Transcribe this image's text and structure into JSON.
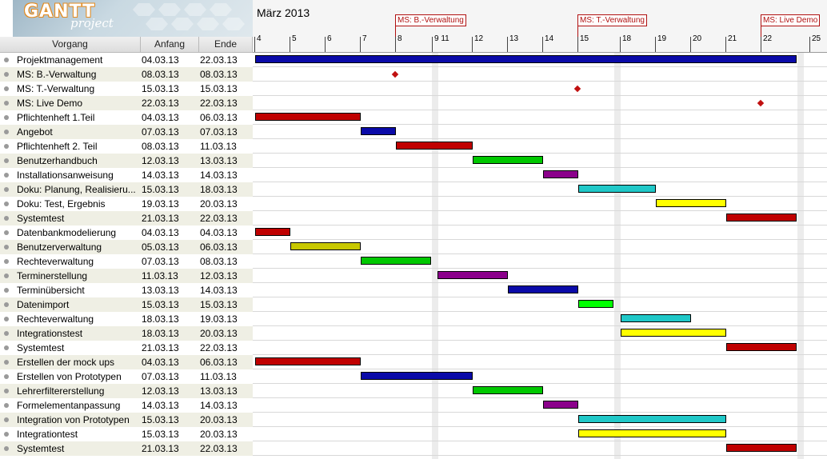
{
  "app": {
    "logo_main": "GANTT",
    "logo_sub": "project"
  },
  "columns": {
    "task": "Vorgang",
    "start": "Anfang",
    "end": "Ende"
  },
  "chart": {
    "month": "März 2013",
    "day_ticks": [
      "4",
      "5",
      "6",
      "7",
      "8",
      "9 11",
      "12",
      "13",
      "14",
      "15",
      "18",
      "19",
      "20",
      "21",
      "22",
      "25"
    ],
    "milestones": [
      {
        "label": "MS: B.-Verwaltung",
        "date": "08.03.13"
      },
      {
        "label": "MS: T.-Verwaltung",
        "date": "15.03.13"
      },
      {
        "label": "MS: Live Demo",
        "date": "22.03.13"
      }
    ],
    "colors": {
      "blue": "#0a0aa8",
      "red": "#c00000",
      "green": "#00c800",
      "purple": "#8b008b",
      "cyan": "#20c8c8",
      "yellow": "#ffff00",
      "olive": "#c8c800",
      "lime": "#00ff00",
      "milestone": "#c01010"
    }
  },
  "tasks": [
    {
      "name": "Projektmanagement",
      "start": "04.03.13",
      "end": "22.03.13",
      "color": "blue"
    },
    {
      "name": "MS: B.-Verwaltung",
      "start": "08.03.13",
      "end": "08.03.13",
      "milestone": true
    },
    {
      "name": "MS: T.-Verwaltung",
      "start": "15.03.13",
      "end": "15.03.13",
      "milestone": true
    },
    {
      "name": "MS: Live Demo",
      "start": "22.03.13",
      "end": "22.03.13",
      "milestone": true
    },
    {
      "name": "Pflichtenheft 1.Teil",
      "start": "04.03.13",
      "end": "06.03.13",
      "color": "red"
    },
    {
      "name": "Angebot",
      "start": "07.03.13",
      "end": "07.03.13",
      "color": "blue"
    },
    {
      "name": "Pflichtenheft 2. Teil",
      "start": "08.03.13",
      "end": "11.03.13",
      "color": "red"
    },
    {
      "name": "Benutzerhandbuch",
      "start": "12.03.13",
      "end": "13.03.13",
      "color": "green"
    },
    {
      "name": "Installationsanweisung",
      "start": "14.03.13",
      "end": "14.03.13",
      "color": "purple"
    },
    {
      "name": "Doku: Planung, Realisieru...",
      "start": "15.03.13",
      "end": "18.03.13",
      "color": "cyan"
    },
    {
      "name": "Doku: Test, Ergebnis",
      "start": "19.03.13",
      "end": "20.03.13",
      "color": "yellow"
    },
    {
      "name": "Systemtest",
      "start": "21.03.13",
      "end": "22.03.13",
      "color": "red"
    },
    {
      "name": "Datenbankmodelierung",
      "start": "04.03.13",
      "end": "04.03.13",
      "color": "red"
    },
    {
      "name": "Benutzerverwaltung",
      "start": "05.03.13",
      "end": "06.03.13",
      "color": "olive"
    },
    {
      "name": "Rechteverwaltung",
      "start": "07.03.13",
      "end": "08.03.13",
      "color": "green"
    },
    {
      "name": "Terminerstellung",
      "start": "11.03.13",
      "end": "12.03.13",
      "color": "purple"
    },
    {
      "name": "Terminübersicht",
      "start": "13.03.13",
      "end": "14.03.13",
      "color": "blue"
    },
    {
      "name": "Datenimport",
      "start": "15.03.13",
      "end": "15.03.13",
      "color": "lime"
    },
    {
      "name": "Rechteverwaltung",
      "start": "18.03.13",
      "end": "19.03.13",
      "color": "cyan"
    },
    {
      "name": "Integrationstest",
      "start": "18.03.13",
      "end": "20.03.13",
      "color": "yellow"
    },
    {
      "name": "Systemtest",
      "start": "21.03.13",
      "end": "22.03.13",
      "color": "red"
    },
    {
      "name": "Erstellen der mock ups",
      "start": "04.03.13",
      "end": "06.03.13",
      "color": "red"
    },
    {
      "name": "Erstellen von Prototypen",
      "start": "07.03.13",
      "end": "11.03.13",
      "color": "blue"
    },
    {
      "name": "Lehrerfiltererstellung",
      "start": "12.03.13",
      "end": "13.03.13",
      "color": "green"
    },
    {
      "name": "Formelementanpassung",
      "start": "14.03.13",
      "end": "14.03.13",
      "color": "purple"
    },
    {
      "name": "Integration von Prototypen",
      "start": "15.03.13",
      "end": "20.03.13",
      "color": "cyan"
    },
    {
      "name": "Integrationtest",
      "start": "15.03.13",
      "end": "20.03.13",
      "color": "yellow"
    },
    {
      "name": "Systemtest",
      "start": "21.03.13",
      "end": "22.03.13",
      "color": "red"
    }
  ]
}
